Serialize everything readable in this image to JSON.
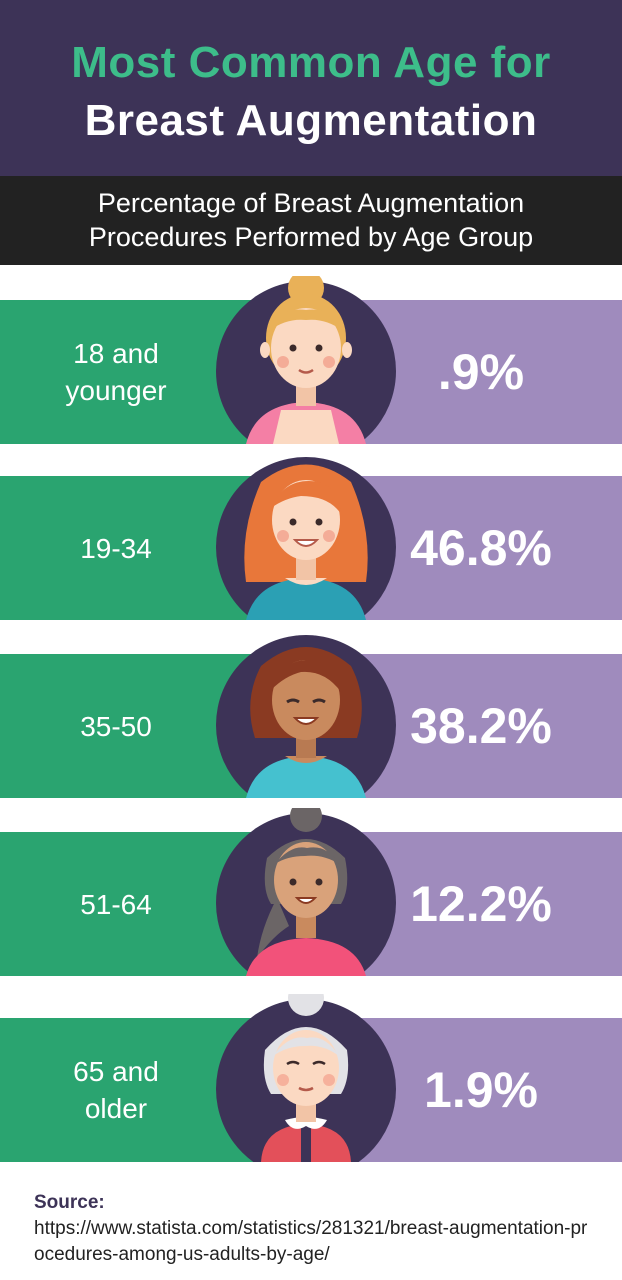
{
  "title": {
    "line1": "Most Common Age for",
    "line2": "Breast Augmentation"
  },
  "subtitle": {
    "line1": "Percentage of Breast Augmentation",
    "line2": "Procedures Performed by Age Group"
  },
  "colors": {
    "header_bg": "#3d3357",
    "accent_green": "#3dbd8a",
    "left_panel": "#2aa470",
    "right_panel": "#9f8bbd",
    "circle": "#3d3357",
    "subheader_bg": "#222222"
  },
  "rows": [
    {
      "age_line1": "18 and",
      "age_line2": "younger",
      "value_label": ".9%",
      "avatar": "young-woman-bun-avatar"
    },
    {
      "age_line1": "19-34",
      "age_line2": "",
      "value_label": "46.8%",
      "avatar": "redhead-woman-avatar"
    },
    {
      "age_line1": "35-50",
      "age_line2": "",
      "value_label": "38.2%",
      "avatar": "brunette-woman-avatar"
    },
    {
      "age_line1": "51-64",
      "age_line2": "",
      "value_label": "12.2%",
      "avatar": "gray-hair-woman-avatar"
    },
    {
      "age_line1": "65 and",
      "age_line2": "older",
      "value_label": "1.9%",
      "avatar": "elderly-woman-avatar"
    }
  ],
  "chart_data": {
    "type": "table",
    "title": "Most Common Age for Breast Augmentation",
    "subtitle": "Percentage of Breast Augmentation Procedures Performed by Age Group",
    "categories": [
      "18 and younger",
      "19-34",
      "35-50",
      "51-64",
      "65 and older"
    ],
    "values": [
      0.9,
      46.8,
      38.2,
      12.2,
      1.9
    ]
  },
  "source": {
    "label": "Source:",
    "url": "https://www.statista.com/statistics/281321/breast-augmentation-procedures-among-us-adults-by-age/"
  }
}
